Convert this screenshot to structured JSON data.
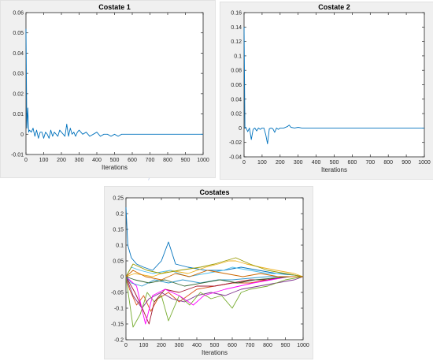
{
  "chart_data": [
    {
      "type": "line",
      "title": "Costate 1",
      "xlabel": "Iterations",
      "ylabel": "",
      "xlim": [
        0,
        1000
      ],
      "ylim": [
        -0.01,
        0.06
      ],
      "xticks": [
        "0",
        "100",
        "200",
        "300",
        "400",
        "500",
        "600",
        "700",
        "800",
        "900",
        "1000"
      ],
      "yticks": [
        "-0.01",
        "0",
        "0.01",
        "0.02",
        "0.03",
        "0.04",
        "0.05",
        "0.06"
      ],
      "grid": false,
      "series": [
        {
          "color": "#0072bd",
          "x": [
            0,
            5,
            10,
            15,
            20,
            30,
            40,
            50,
            60,
            70,
            80,
            90,
            100,
            110,
            120,
            130,
            140,
            150,
            160,
            170,
            180,
            190,
            200,
            210,
            220,
            230,
            240,
            250,
            260,
            270,
            280,
            290,
            300,
            320,
            340,
            360,
            380,
            400,
            420,
            440,
            460,
            480,
            500,
            520,
            540,
            560,
            580,
            600,
            650,
            700,
            750,
            800,
            900,
            1000
          ],
          "y": [
            0.052,
            0.003,
            0.013,
            0.001,
            0.002,
            0.001,
            0.003,
            -0.001,
            0.002,
            -0.002,
            0.001,
            0.001,
            -0.002,
            0.001,
            0.0,
            -0.002,
            0.002,
            -0.001,
            0.001,
            0.0,
            -0.001,
            0.002,
            0.001,
            0.0,
            -0.001,
            0.005,
            -0.001,
            0.003,
            0.0,
            0.001,
            -0.001,
            0.001,
            0.002,
            0.0,
            0.001,
            -0.001,
            0.0,
            0.001,
            -0.001,
            0.0,
            0.0,
            -0.001,
            0.0,
            -0.001,
            0.0,
            0.0,
            0.0,
            0.0,
            0.0,
            0.0,
            0.0,
            0.0,
            0.0,
            0.0
          ]
        }
      ]
    },
    {
      "type": "line",
      "title": "Costate 2",
      "xlabel": "Iterations",
      "ylabel": "",
      "xlim": [
        0,
        1000
      ],
      "ylim": [
        -0.04,
        0.16
      ],
      "xticks": [
        "0",
        "100",
        "200",
        "300",
        "400",
        "500",
        "600",
        "700",
        "800",
        "900",
        "1000"
      ],
      "yticks": [
        "-0.04",
        "-0.02",
        "0",
        "0.02",
        "0.04",
        "0.06",
        "0.08",
        "0.1",
        "0.12",
        "0.14",
        "0.16"
      ],
      "grid": false,
      "series": [
        {
          "color": "#0072bd",
          "x": [
            0,
            5,
            10,
            20,
            30,
            40,
            50,
            60,
            70,
            80,
            90,
            100,
            110,
            120,
            130,
            140,
            150,
            160,
            170,
            180,
            190,
            200,
            220,
            240,
            250,
            260,
            280,
            300,
            320,
            340,
            360,
            400,
            450,
            500,
            600,
            700,
            800,
            900,
            1000
          ],
          "y": [
            0.14,
            0.0,
            0.001,
            -0.005,
            0.0,
            -0.016,
            -0.002,
            0.0,
            -0.004,
            0.0,
            -0.002,
            0.0,
            0.0,
            -0.009,
            -0.022,
            -0.001,
            0.0,
            -0.001,
            -0.006,
            0.0,
            -0.002,
            0.0,
            0.0,
            0.002,
            0.004,
            0.001,
            0.0,
            0.001,
            0.0,
            0.0,
            0.0,
            0.0,
            0.0,
            0.0,
            0.0,
            0.0,
            0.0,
            0.0,
            0.0
          ]
        }
      ]
    },
    {
      "type": "line",
      "title": "Costates",
      "xlabel": "Iterations",
      "ylabel": "",
      "xlim": [
        0,
        1000
      ],
      "ylim": [
        -0.2,
        0.25
      ],
      "xticks": [
        "0",
        "100",
        "200",
        "300",
        "400",
        "500",
        "600",
        "700",
        "800",
        "900",
        "1000"
      ],
      "yticks": [
        "-0.2",
        "-0.15",
        "-0.1",
        "-0.05",
        "0",
        "0.05",
        "0.1",
        "0.15",
        "0.2",
        "0.25"
      ],
      "grid": false,
      "series": [
        {
          "color": "#0072bd",
          "x": [
            0,
            10,
            30,
            60,
            100,
            150,
            200,
            240,
            280,
            350,
            450,
            550,
            650,
            750,
            850,
            950,
            1000
          ],
          "y": [
            0.22,
            0.1,
            0.06,
            0.04,
            0.03,
            0.02,
            0.05,
            0.11,
            0.04,
            0.03,
            0.02,
            0.02,
            0.03,
            0.02,
            0.01,
            0.005,
            0.0
          ]
        },
        {
          "color": "#d95319",
          "x": [
            0,
            20,
            60,
            100,
            140,
            180,
            240,
            300,
            400,
            500,
            600,
            700,
            800,
            900,
            1000
          ],
          "y": [
            0.0,
            -0.04,
            -0.09,
            -0.06,
            -0.11,
            -0.07,
            -0.05,
            -0.08,
            -0.04,
            -0.03,
            -0.02,
            -0.02,
            -0.01,
            0.0,
            0.0
          ]
        },
        {
          "color": "#edb120",
          "x": [
            0,
            50,
            150,
            250,
            350,
            450,
            520,
            580,
            620,
            680,
            760,
            850,
            950,
            1000
          ],
          "y": [
            0.0,
            0.01,
            0.0,
            0.02,
            0.01,
            0.03,
            0.04,
            0.05,
            0.05,
            0.04,
            0.03,
            0.02,
            0.01,
            0.0
          ]
        },
        {
          "color": "#7e2f8e",
          "x": [
            0,
            40,
            90,
            130,
            200,
            260,
            330,
            400,
            480,
            560,
            650,
            750,
            850,
            950,
            1000
          ],
          "y": [
            0.0,
            -0.06,
            -0.1,
            -0.07,
            -0.05,
            -0.07,
            -0.08,
            -0.06,
            -0.05,
            -0.06,
            -0.04,
            -0.03,
            -0.02,
            -0.01,
            0.0
          ]
        },
        {
          "color": "#77ac30",
          "x": [
            0,
            40,
            80,
            120,
            160,
            200,
            240,
            300,
            360,
            420,
            480,
            540,
            600,
            650,
            700,
            800,
            900,
            1000
          ],
          "y": [
            0.0,
            -0.16,
            -0.12,
            -0.05,
            -0.08,
            -0.06,
            -0.14,
            -0.06,
            -0.09,
            -0.05,
            -0.07,
            -0.06,
            -0.1,
            -0.05,
            -0.04,
            -0.03,
            -0.01,
            0.0
          ]
        },
        {
          "color": "#4dbeee",
          "x": [
            0,
            30,
            80,
            150,
            250,
            350,
            450,
            550,
            600,
            700,
            800,
            900,
            1000
          ],
          "y": [
            0.0,
            0.03,
            0.02,
            0.01,
            0.02,
            0.0,
            0.01,
            0.02,
            0.03,
            0.02,
            0.01,
            0.01,
            0.0
          ]
        },
        {
          "color": "#a2142f",
          "x": [
            0,
            50,
            100,
            130,
            160,
            220,
            300,
            400,
            500,
            600,
            700,
            800,
            900,
            1000
          ],
          "y": [
            0.0,
            -0.05,
            -0.11,
            -0.15,
            -0.08,
            -0.04,
            -0.05,
            -0.03,
            -0.03,
            -0.02,
            -0.01,
            -0.01,
            0.0,
            0.0
          ]
        },
        {
          "color": "#ff00ff",
          "x": [
            0,
            60,
            110,
            150,
            220,
            300,
            380,
            440,
            500,
            560,
            640,
            720,
            820,
            920,
            1000
          ],
          "y": [
            0.0,
            -0.03,
            -0.15,
            -0.06,
            -0.04,
            -0.06,
            -0.09,
            -0.06,
            -0.05,
            -0.04,
            -0.03,
            -0.02,
            -0.01,
            0.0,
            0.0
          ]
        },
        {
          "color": "#3399cc",
          "x": [
            0,
            30,
            90,
            160,
            240,
            320,
            420,
            520,
            600,
            700,
            800,
            900,
            1000
          ],
          "y": [
            0.0,
            -0.02,
            -0.03,
            -0.01,
            -0.02,
            -0.01,
            -0.02,
            -0.01,
            -0.01,
            -0.005,
            0.0,
            0.0,
            0.0
          ]
        },
        {
          "color": "#999900",
          "x": [
            0,
            40,
            120,
            200,
            300,
            420,
            500,
            560,
            620,
            700,
            800,
            900,
            1000
          ],
          "y": [
            0.0,
            0.04,
            0.02,
            0.01,
            0.02,
            0.03,
            0.04,
            0.05,
            0.06,
            0.04,
            0.02,
            0.01,
            0.0
          ]
        },
        {
          "color": "#336633",
          "x": [
            0,
            50,
            130,
            220,
            330,
            430,
            530,
            630,
            730,
            830,
            930,
            1000
          ],
          "y": [
            0.0,
            -0.01,
            -0.02,
            -0.01,
            -0.03,
            -0.02,
            -0.01,
            -0.02,
            -0.01,
            -0.005,
            0.0,
            0.0
          ]
        },
        {
          "color": "#cc6600",
          "x": [
            0,
            40,
            110,
            200,
            280,
            360,
            460,
            560,
            660,
            760,
            860,
            960,
            1000
          ],
          "y": [
            0.0,
            0.02,
            0.0,
            -0.01,
            0.01,
            0.0,
            0.02,
            0.01,
            0.0,
            0.01,
            0.0,
            0.0,
            0.0
          ]
        }
      ]
    }
  ]
}
